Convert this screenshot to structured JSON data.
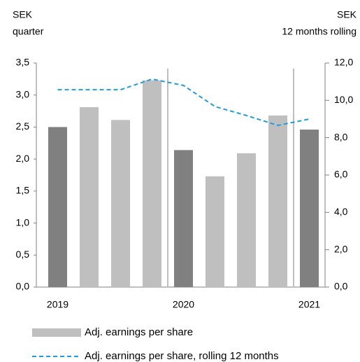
{
  "chart_data": {
    "type": "bar",
    "left_axis_label": [
      "SEK",
      "quarter"
    ],
    "right_axis_label": [
      "SEK",
      "12 months rolling"
    ],
    "categories": [
      "2019",
      null,
      null,
      null,
      "2020",
      null,
      null,
      null,
      "2021"
    ],
    "series": [
      {
        "name": "Adj. earnings per share",
        "color": "#bfbfbf",
        "colors": [
          "#808080",
          "#bfbfbf",
          "#bfbfbf",
          "#bfbfbf",
          "#808080",
          "#bfbfbf",
          "#bfbfbf",
          "#bfbfbf",
          "#808080"
        ],
        "values": [
          2.5,
          2.81,
          2.61,
          3.23,
          2.14,
          1.73,
          2.09,
          2.68,
          2.46
        ]
      },
      {
        "name": "Adj. earnings per share, rolling 12 months",
        "color": "#1f9de0",
        "type": "line",
        "axis": "y2",
        "dashed": true,
        "values": [
          10.57,
          10.57,
          10.57,
          11.14,
          10.8,
          9.67,
          9.19,
          8.66,
          9.0
        ]
      }
    ],
    "ylim": [
      0,
      3.5
    ],
    "yticks": [
      {
        "value": 0,
        "label": "0,0"
      },
      {
        "value": 0.5,
        "label": "0,5"
      },
      {
        "value": 1,
        "label": "1,0"
      },
      {
        "value": 1.5,
        "label": "1,5"
      },
      {
        "value": 2,
        "label": "2,0"
      },
      {
        "value": 2.5,
        "label": "2,5"
      },
      {
        "value": 3,
        "label": "3,0"
      },
      {
        "value": 3.5,
        "label": "3,5"
      }
    ],
    "y2lim": [
      0,
      12
    ],
    "y2ticks": [
      {
        "value": 0,
        "label": "0,0"
      },
      {
        "value": 2,
        "label": "2,0"
      },
      {
        "value": 4,
        "label": "4,0"
      },
      {
        "value": 6,
        "label": "6,0"
      },
      {
        "value": 8,
        "label": "8,0"
      },
      {
        "value": 10,
        "label": "10,0"
      },
      {
        "value": 12,
        "label": "12,0"
      }
    ],
    "grid": false
  }
}
